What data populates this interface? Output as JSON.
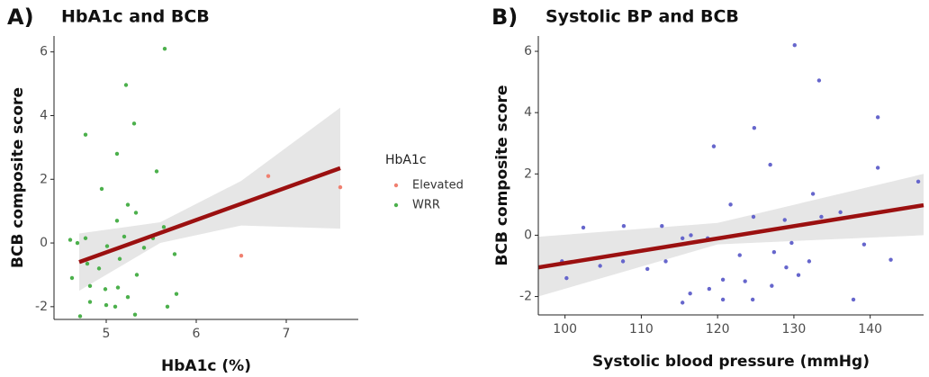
{
  "chart_data": [
    {
      "type": "scatter",
      "panel_label": "A)",
      "title": "HbA1c and BCB",
      "x_label": "HbA1c (%)",
      "y_label": "BCB composite score",
      "xlim": [
        4.42,
        7.8
      ],
      "ylim": [
        -2.4,
        6.5
      ],
      "xticks": [
        5,
        6,
        7
      ],
      "yticks": [
        -2,
        0,
        2,
        4,
        6
      ],
      "grid": false,
      "legend_title": "HbA1c",
      "series": [
        {
          "name": "Elevated",
          "color": "#f08070",
          "x": [
            6.8,
            6.5,
            7.6
          ],
          "values": [
            2.1,
            -0.4,
            1.75
          ]
        },
        {
          "name": "WRR",
          "color": "#4cb04c",
          "x": [
            5.65,
            5.22,
            5.31,
            4.77,
            5.12,
            5.56,
            4.95,
            5.24,
            5.33,
            5.12,
            5.64,
            4.6,
            4.68,
            5.2,
            5.52,
            5.01,
            5.76,
            4.79,
            4.92,
            5.15,
            5.34,
            4.62,
            4.82,
            4.99,
            5.13,
            5.24,
            5.78,
            5.0,
            5.1,
            5.32,
            5.68,
            4.71,
            4.82,
            5.42,
            4.77
          ],
          "values": [
            6.1,
            4.96,
            3.75,
            3.4,
            2.8,
            2.25,
            1.7,
            1.2,
            0.95,
            0.7,
            0.5,
            0.1,
            0.0,
            0.2,
            0.15,
            -0.1,
            -0.35,
            -0.65,
            -0.8,
            -0.5,
            -1.0,
            -1.1,
            -1.35,
            -1.45,
            -1.4,
            -1.7,
            -1.6,
            -1.95,
            -2.0,
            -2.25,
            -2.0,
            -2.3,
            -1.85,
            -0.15,
            0.15
          ]
        }
      ],
      "fit": {
        "color": "#9b1010",
        "x": [
          4.7,
          7.6
        ],
        "values": [
          -0.6,
          2.35
        ]
      },
      "band": {
        "color": "#e6e6e6",
        "x": [
          4.7,
          5.6,
          6.5,
          7.6
        ],
        "lower": [
          -1.5,
          0.0,
          0.55,
          0.45
        ],
        "upper": [
          0.3,
          0.65,
          1.95,
          4.25
        ]
      }
    },
    {
      "type": "scatter",
      "panel_label": "B)",
      "title": "Systolic BP and BCB",
      "x_label": "Systolic blood pressure (mmHg)",
      "y_label": "BCB composite score",
      "xlim": [
        96.5,
        147
      ],
      "ylim": [
        -2.6,
        6.5
      ],
      "xticks": [
        100,
        110,
        120,
        130,
        140
      ],
      "yticks": [
        -2,
        0,
        2,
        4,
        6
      ],
      "grid": false,
      "series": [
        {
          "color": "#6666cc",
          "x": [
            130.1,
            133.3,
            141,
            141,
            146.3,
            124.8,
            119.5,
            126.9,
            132.5,
            121.7,
            124.7,
            112.7,
            107.7,
            102.4,
            115.4,
            128.8,
            133.6,
            136.1,
            139.2,
            132,
            129.7,
            127.4,
            122.9,
            118.7,
            116.5,
            113.2,
            107.6,
            110.8,
            104.6,
            99.6,
            100.2,
            116.4,
            118.9,
            120.7,
            120.7,
            123.6,
            124.6,
            127.1,
            130.6,
            129,
            137.8,
            142.7,
            110.2,
            115.4
          ],
          "values": [
            6.2,
            5.05,
            3.85,
            2.2,
            1.75,
            3.5,
            2.9,
            2.3,
            1.35,
            1.0,
            0.6,
            0.3,
            0.3,
            0.25,
            -0.1,
            0.5,
            0.6,
            0.75,
            -0.3,
            -0.85,
            -0.25,
            -0.55,
            -0.65,
            -0.1,
            0.0,
            -0.85,
            -0.85,
            -1.1,
            -1.0,
            -0.85,
            -1.4,
            -1.9,
            -1.75,
            -1.45,
            -2.1,
            -1.5,
            -2.1,
            -1.65,
            -1.3,
            -1.05,
            -2.1,
            -0.8,
            -0.5,
            -2.2
          ]
        }
      ],
      "fit": {
        "color": "#9b1010",
        "x": [
          96.5,
          147
        ],
        "values": [
          -1.05,
          0.98
        ]
      },
      "band": {
        "color": "#e6e6e6",
        "x": [
          96.5,
          120,
          147
        ],
        "lower": [
          -2.0,
          -0.3,
          0.0
        ],
        "upper": [
          -0.05,
          0.4,
          2.0
        ]
      }
    }
  ]
}
